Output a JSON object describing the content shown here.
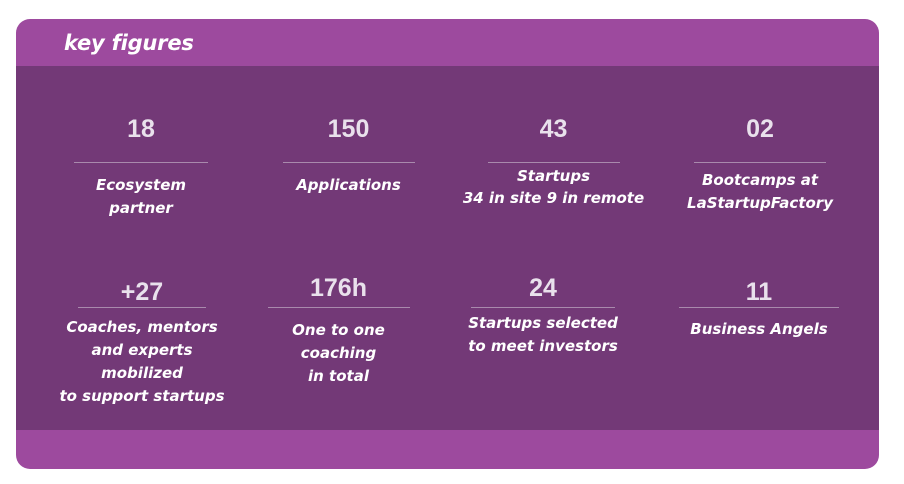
{
  "card": {
    "title": "key figures"
  },
  "stats": [
    {
      "value": "18",
      "label": "Ecosystem partner"
    },
    {
      "value": "150",
      "label": "Applications"
    },
    {
      "value": "43",
      "label": "Startups\n34 in site 9 in remote"
    },
    {
      "value": "02",
      "label": "Bootcamps at\nLaStartupFactory"
    },
    {
      "value": "+27",
      "label": "Coaches, mentors\nand experts mobilized\nto support startups"
    },
    {
      "value": "176h",
      "label": "One to one coaching\nin total"
    },
    {
      "value": "24",
      "label": "Startups selected\n to meet investors"
    },
    {
      "value": "11",
      "label": "Business Angels"
    }
  ],
  "colors": {
    "header_band": "#9d4a9e",
    "panel": "#733977",
    "divider": "#a98aad",
    "text": "#ffffff"
  }
}
